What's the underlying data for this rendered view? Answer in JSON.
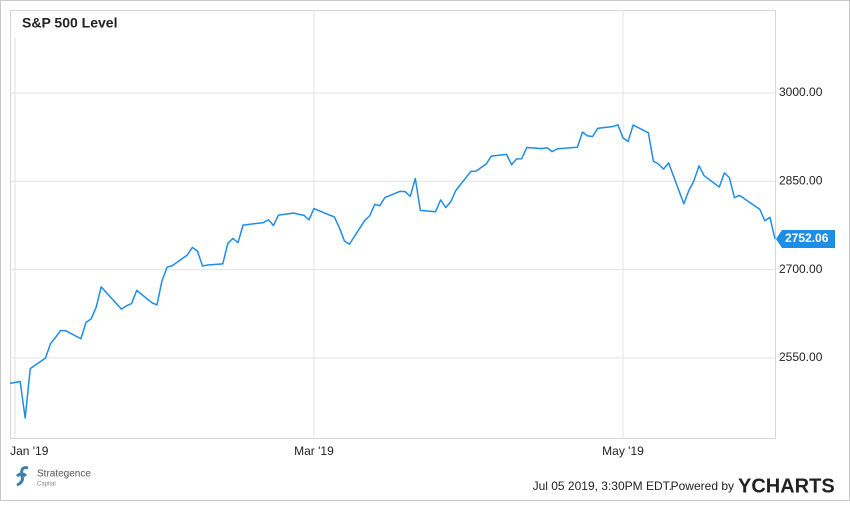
{
  "chart_data": {
    "type": "line",
    "title": "S&P 500 Level",
    "color": "#1f8ce6",
    "x": [
      -1,
      1,
      2,
      3,
      6,
      7,
      8,
      9,
      10,
      13,
      14,
      15,
      16,
      17,
      21,
      22,
      23,
      24,
      27,
      28,
      29,
      30,
      31,
      34,
      35,
      36,
      37,
      38,
      41,
      42,
      43,
      44,
      45,
      49,
      50,
      51,
      52,
      55,
      56,
      57,
      58,
      59,
      62,
      63,
      64,
      65,
      66,
      69,
      70,
      71,
      72,
      73,
      76,
      77,
      78,
      79,
      80,
      83,
      84,
      85,
      86,
      87,
      90,
      91,
      92,
      93,
      94,
      97,
      98,
      99,
      100,
      101,
      104,
      105,
      106,
      107,
      111,
      112,
      113,
      114,
      115,
      118,
      119,
      120,
      121,
      122,
      125,
      126,
      127,
      128,
      129,
      132,
      133,
      134,
      135,
      136,
      139,
      140,
      141,
      142,
      143,
      147,
      148,
      149,
      150
    ],
    "values": [
      2506.85,
      2510.03,
      2447.89,
      2531.94,
      2549.69,
      2574.41,
      2584.96,
      2596.64,
      2596.26,
      2582.61,
      2610.3,
      2616.1,
      2635.96,
      2670.71,
      2632.9,
      2638.7,
      2642.33,
      2664.76,
      2643.85,
      2640.0,
      2681.05,
      2704.1,
      2706.53,
      2724.87,
      2737.7,
      2731.61,
      2706.05,
      2707.88,
      2709.8,
      2744.73,
      2753.03,
      2745.73,
      2775.6,
      2779.76,
      2784.7,
      2774.88,
      2792.67,
      2796.11,
      2793.9,
      2792.38,
      2784.49,
      2803.69,
      2792.81,
      2789.65,
      2771.45,
      2748.93,
      2743.07,
      2783.3,
      2791.52,
      2810.92,
      2808.48,
      2822.48,
      2832.94,
      2832.57,
      2824.23,
      2854.88,
      2800.71,
      2798.36,
      2818.46,
      2805.37,
      2815.44,
      2834.4,
      2867.19,
      2867.24,
      2873.4,
      2879.39,
      2892.74,
      2895.77,
      2878.2,
      2888.21,
      2888.32,
      2907.41,
      2905.58,
      2907.06,
      2900.45,
      2905.03,
      2907.97,
      2933.68,
      2927.25,
      2926.17,
      2939.88,
      2943.03,
      2945.83,
      2923.73,
      2917.52,
      2945.64,
      2932.47,
      2884.05,
      2879.42,
      2870.72,
      2881.4,
      2811.87,
      2834.41,
      2850.96,
      2876.32,
      2859.53,
      2840.23,
      2864.36,
      2856.27,
      2822.24,
      2826.06,
      2802.39,
      2783.02,
      2788.86,
      2752.06
    ],
    "xlim": [
      -1,
      150
    ],
    "xticks": [
      {
        "value": 0,
        "label": "Jan '19"
      },
      {
        "value": 59,
        "label": "Mar '19"
      },
      {
        "value": 120,
        "label": "May '19"
      }
    ],
    "ylim": [
      2414,
      3141
    ],
    "yticks": [
      {
        "value": 2550,
        "label": "2550.00"
      },
      {
        "value": 2700,
        "label": "2700.00"
      },
      {
        "value": 2850,
        "label": "2850.00"
      },
      {
        "value": 3000,
        "label": "3000.00"
      }
    ],
    "grid": true,
    "timestamp": "Jul 05 2019, 3:30PM EDT.",
    "powered_by": "Powered by",
    "brand": "YCHARTS",
    "logo_name": "Strategence",
    "logo_sub": "Capital"
  }
}
